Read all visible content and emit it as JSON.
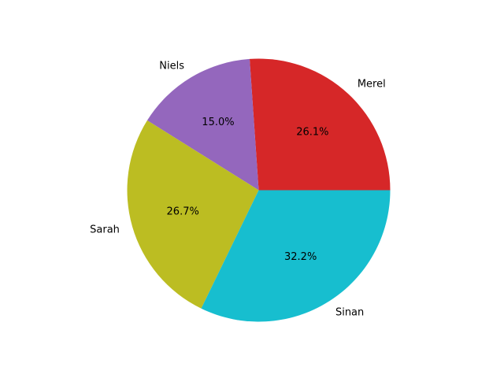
{
  "chart_data": {
    "type": "pie",
    "title": "",
    "start_angle_deg": 0,
    "direction": "counterclockwise",
    "slices": [
      {
        "label": "Merel",
        "value": 26.1,
        "pct_text": "26.1%",
        "color": "#d62728"
      },
      {
        "label": "Niels",
        "value": 15.0,
        "pct_text": "15.0%",
        "color": "#9467bd"
      },
      {
        "label": "Sarah",
        "value": 26.7,
        "pct_text": "26.7%",
        "color": "#bcbd22"
      },
      {
        "label": "Sinan",
        "value": 32.2,
        "pct_text": "32.2%",
        "color": "#17becf"
      }
    ]
  }
}
